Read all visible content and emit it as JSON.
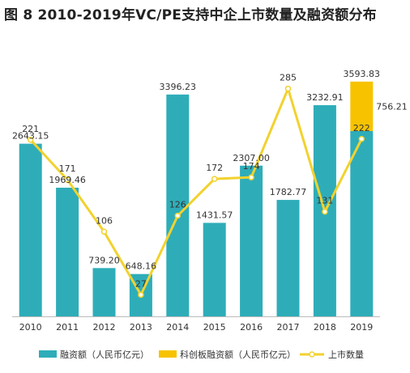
{
  "chart_data": {
    "type": "bar",
    "title": "图 8 2010-2019年VC/PE支持中企上市数量及融资额分布",
    "categories": [
      "2010",
      "2011",
      "2012",
      "2013",
      "2014",
      "2015",
      "2016",
      "2017",
      "2018",
      "2019"
    ],
    "series": [
      {
        "name": "融资额（人民币亿元）",
        "type": "bar",
        "color": "#2eadb9",
        "values": [
          2643.15,
          1969.46,
          739.2,
          648.16,
          3396.23,
          1431.57,
          2307.0,
          1782.77,
          3232.91,
          2837.62
        ]
      },
      {
        "name": "科创板融资额（人民币亿元）",
        "type": "bar",
        "color": "#f7c300",
        "values": [
          0,
          0,
          0,
          0,
          0,
          0,
          0,
          0,
          0,
          756.21
        ]
      },
      {
        "name": "上市数量",
        "type": "line",
        "color": "#f2d22e",
        "values": [
          221,
          171,
          106,
          27,
          126,
          172,
          174,
          285,
          131,
          222
        ]
      }
    ],
    "bar_labels": [
      "2643.15",
      "1969.46",
      "739.20",
      "648.16",
      "3396.23",
      "1431.57",
      "2307.00",
      "1782.77",
      "3232.91",
      "3593.83"
    ],
    "stack_label": "756.21",
    "line_labels": [
      "221",
      "171",
      "106",
      "27",
      "126",
      "172",
      "174",
      "285",
      "131",
      "222"
    ],
    "stacked": true,
    "ylim_bar": [
      0,
      4100
    ],
    "ylim_line": [
      0,
      320
    ],
    "grid": false,
    "legend_position": "bottom"
  }
}
